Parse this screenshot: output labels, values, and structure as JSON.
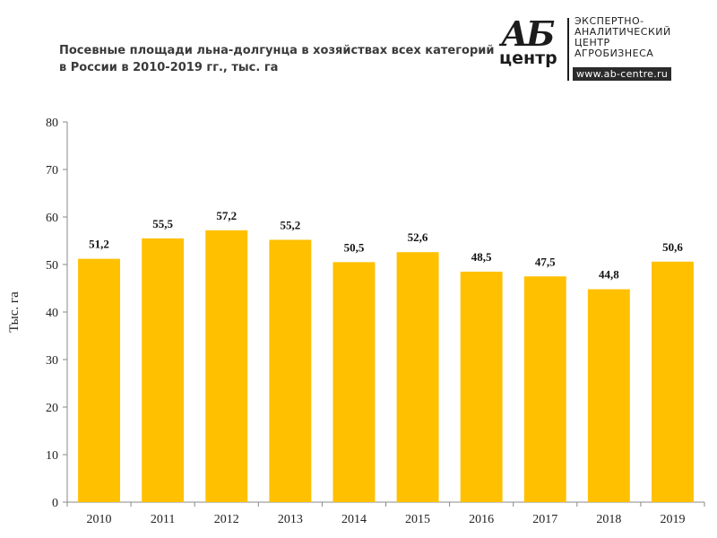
{
  "title_lines": [
    "Посевные площади льна-долгунца в хозяйствах всех категорий",
    "в России в 2010-2019 гг., тыс. га"
  ],
  "logo": {
    "mark_top": "АБ",
    "mark_bottom": "центр",
    "lines": [
      "ЭКСПЕРТНО-",
      "АНАЛИТИЧЕСКИЙ",
      "ЦЕНТР",
      "АГРОБИЗНЕСА"
    ],
    "url": "www.ab-centre.ru"
  },
  "chart_data": {
    "type": "bar",
    "title": "Посевные площади льна-долгунца в хозяйствах всех категорий в России в 2010-2019 гг., тыс. га",
    "xlabel": "",
    "ylabel": "Тыс. га",
    "categories": [
      "2010",
      "2011",
      "2012",
      "2013",
      "2014",
      "2015",
      "2016",
      "2017",
      "2018",
      "2019"
    ],
    "values": [
      51.2,
      55.5,
      57.2,
      55.2,
      50.5,
      52.6,
      48.5,
      47.5,
      44.8,
      50.6
    ],
    "value_labels": [
      "51,2",
      "55,5",
      "57,2",
      "55,2",
      "50,5",
      "52,6",
      "48,5",
      "47,5",
      "44,8",
      "50,6"
    ],
    "ylim": [
      0,
      80
    ],
    "yticks": [
      0,
      10,
      20,
      30,
      40,
      50,
      60,
      70,
      80
    ],
    "grid": false,
    "legend": "none",
    "bar_color": "#FFC000"
  }
}
